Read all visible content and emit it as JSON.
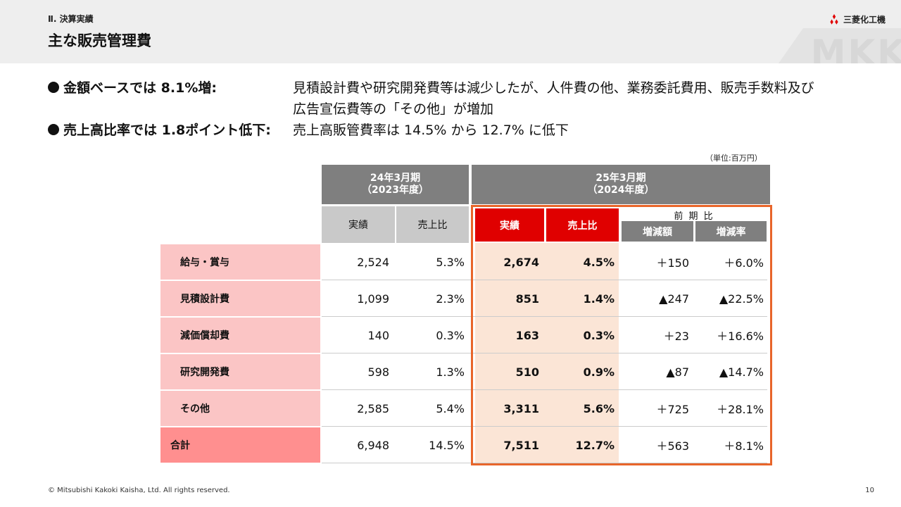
{
  "header": {
    "section_label": "Ⅱ. 決算実績",
    "title": "主な販売管理費",
    "logo_text": "三菱化工機",
    "watermark": "MKK"
  },
  "bullets": [
    {
      "heading": "金額ベースでは 8.1%増:",
      "body_line1": "見積設計費や研究開発費等は減少したが、人件費の他、業務委託費用、販売手数料及び",
      "body_line2": "広告宣伝費等の「その他」が増加"
    },
    {
      "heading": "売上高比率では 1.8ポイント低下:",
      "body_line1": "売上高販管費率は 14.5% から 12.7% に低下"
    }
  ],
  "table": {
    "unit_note": "（単位:百万円）",
    "period_prev": {
      "line1": "24年3月期",
      "line2": "（2023年度）"
    },
    "period_curr": {
      "line1": "25年3月期",
      "line2": "（2024年度）"
    },
    "col_actual": "実績",
    "col_ratio": "売上比",
    "comparison_label": "前 期 比",
    "col_diff": "増減額",
    "col_rate": "増減率",
    "rows": [
      {
        "label": "給与・賞与",
        "prev_actual": "2,524",
        "prev_ratio": "5.3%",
        "curr_actual": "2,674",
        "curr_ratio": "4.5%",
        "diff": "＋150",
        "rate": "＋6.0%"
      },
      {
        "label": "見積設計費",
        "prev_actual": "1,099",
        "prev_ratio": "2.3%",
        "curr_actual": "851",
        "curr_ratio": "1.4%",
        "diff": "▲247",
        "rate": "▲22.5%"
      },
      {
        "label": "減価償却費",
        "prev_actual": "140",
        "prev_ratio": "0.3%",
        "curr_actual": "163",
        "curr_ratio": "0.3%",
        "diff": "＋23",
        "rate": "＋16.6%"
      },
      {
        "label": "研究開発費",
        "prev_actual": "598",
        "prev_ratio": "1.3%",
        "curr_actual": "510",
        "curr_ratio": "0.9%",
        "diff": "▲87",
        "rate": "▲14.7%"
      },
      {
        "label": "その他",
        "prev_actual": "2,585",
        "prev_ratio": "5.4%",
        "curr_actual": "3,311",
        "curr_ratio": "5.6%",
        "diff": "＋725",
        "rate": "＋28.1%"
      },
      {
        "label": "合計",
        "prev_actual": "6,948",
        "prev_ratio": "14.5%",
        "curr_actual": "7,511",
        "curr_ratio": "12.7%",
        "diff": "＋563",
        "rate": "＋8.1%"
      }
    ]
  },
  "colors": {
    "header_gray": "#7f7f7f",
    "accent_red": "#e00000",
    "highlight_orange": "#e8652a",
    "row_label_pink": "#fbc5c5",
    "total_label_pink": "#ff8f8f",
    "peach": "#fbe5d6"
  },
  "footer": {
    "copyright": "© Mitsubishi Kakoki Kaisha, Ltd. All rights reserved.",
    "page_number": "10"
  }
}
